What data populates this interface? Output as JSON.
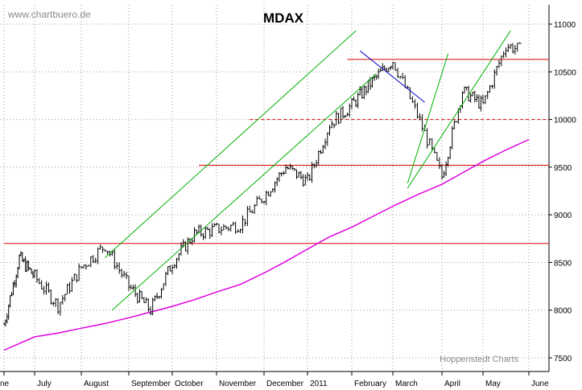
{
  "watermark": "www.chartbuero.de",
  "chart_data": {
    "type": "line",
    "title": "MDAX",
    "source_note": "Hoppenstedt Charts",
    "xlabel": "",
    "ylabel": "",
    "ylim": [
      7400,
      11200
    ],
    "y_ticks": [
      7500,
      8000,
      8500,
      9000,
      9500,
      10000,
      10500,
      11000
    ],
    "y_tick_labels": [
      "7500",
      "8000",
      "8500",
      "9000",
      "9500",
      "10000",
      "10500",
      "11000"
    ],
    "x_tick_labels": [
      "ne",
      "July",
      "August",
      "September",
      "October",
      "November",
      "December",
      "2011",
      "February",
      "March",
      "April",
      "May",
      "June"
    ],
    "grid": true,
    "grid_style": "dotted",
    "series": [
      {
        "kind": "price",
        "color": "#000000",
        "x": [
          0,
          0.5,
          1,
          1.5,
          2,
          2.5,
          3,
          3.5,
          4,
          4.5,
          5,
          5.5,
          6,
          6.5,
          7,
          7.5,
          8,
          8.5,
          9,
          9.5,
          10,
          10.5,
          11,
          11.5,
          12
        ],
        "values": [
          7850,
          8550,
          8350,
          8050,
          8450,
          8680,
          8250,
          8000,
          8500,
          8800,
          8850,
          8900,
          9200,
          9500,
          9350,
          9950,
          10150,
          10400,
          10620,
          10050,
          9400,
          10300,
          10150,
          10780,
          10700
        ]
      },
      {
        "kind": "moving_average",
        "color": "#e000e0",
        "x": [
          0,
          0.5,
          1,
          1.5,
          2,
          2.5,
          3,
          3.5,
          4,
          4.5,
          5,
          5.5,
          6,
          6.5,
          7,
          7.5,
          8,
          8.5,
          9,
          9.5,
          10,
          10.5,
          11,
          11.5,
          12
        ],
        "values": [
          7580,
          7650,
          7720,
          7760,
          7810,
          7860,
          7920,
          7980,
          8040,
          8110,
          8190,
          8270,
          8390,
          8510,
          8640,
          8770,
          8870,
          8980,
          9090,
          9210,
          9320,
          9440,
          9560,
          9680,
          9790
        ]
      }
    ],
    "horizontal_lines": [
      {
        "value": 8700,
        "color": "#e00000",
        "style": "solid",
        "x_from": 0,
        "x_to": 12.6
      },
      {
        "value": 9520,
        "color": "#e00000",
        "style": "solid",
        "x_from": 4.6,
        "x_to": 12.6
      },
      {
        "value": 10000,
        "color": "#e00000",
        "style": "dashed",
        "x_from": 5.7,
        "x_to": 12.6
      },
      {
        "value": 10630,
        "color": "#e00000",
        "style": "solid",
        "x_from": 7.9,
        "x_to": 12.6
      }
    ],
    "trend_lines": [
      {
        "color": "#00b000",
        "x1": 2.5,
        "y1": 8550,
        "x2": 8.1,
        "y2": 10930
      },
      {
        "color": "#00b000",
        "x1": 2.65,
        "y1": 8000,
        "x2": 8.6,
        "y2": 10480
      },
      {
        "color": "#00b000",
        "x1": 9.3,
        "y1": 9330,
        "x2": 10.15,
        "y2": 10690
      },
      {
        "color": "#00b000",
        "x1": 9.3,
        "y1": 9280,
        "x2": 11.6,
        "y2": 10930
      },
      {
        "color": "#0000c0",
        "x1": 8.2,
        "y1": 10720,
        "x2": 9.65,
        "y2": 10180
      }
    ]
  }
}
